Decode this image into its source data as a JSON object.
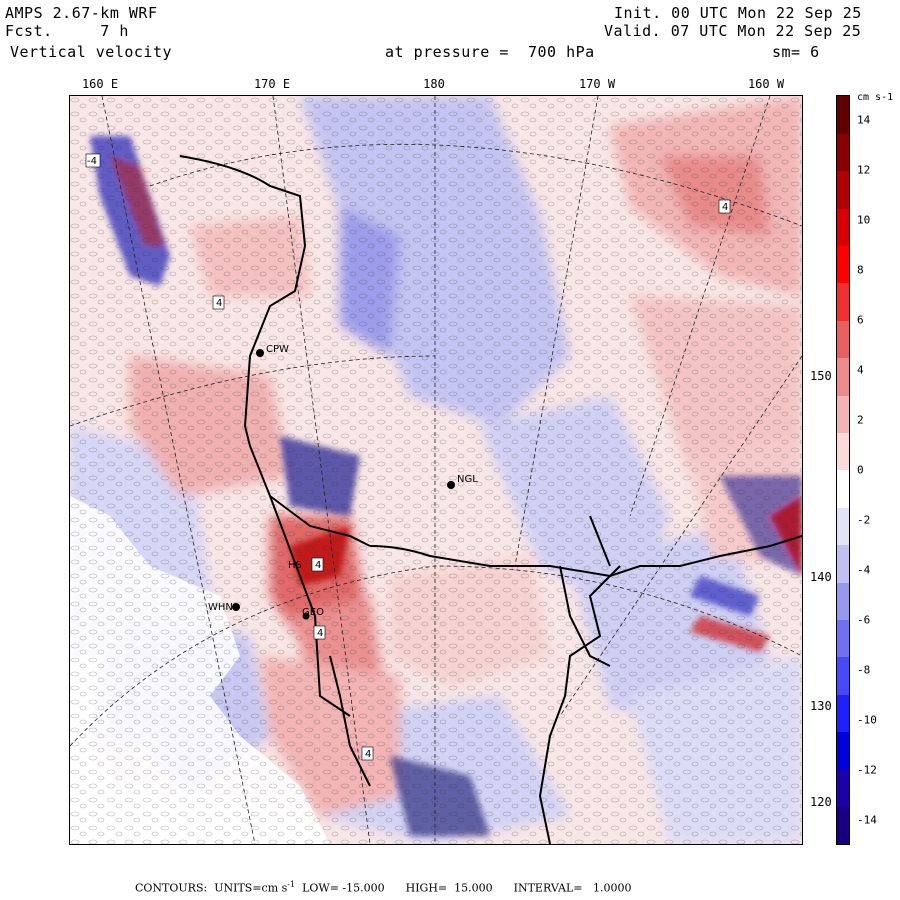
{
  "header": {
    "model": "AMPS 2.67-km WRF",
    "forecast": "Fcst.     7 h",
    "field": "Vertical velocity",
    "init": "Init. 00 UTC Mon 22 Sep 25",
    "valid": "Valid. 07 UTC Mon 22 Sep 25",
    "pressure": "at pressure =  700 hPa",
    "smoothing": "sm= 6"
  },
  "longitude_labels": [
    "160 E",
    "170 E",
    "180",
    "170 W",
    "160 W"
  ],
  "latitude_labels": [
    "150 W",
    "140 W",
    "130 W",
    "120 W"
  ],
  "stations": [
    "NGL",
    "CPW",
    "WHN",
    "GEO",
    "HS"
  ],
  "contour_labels": [
    "4",
    "-4"
  ],
  "colorbar": {
    "unit": "cm s-1",
    "ticks": [
      "14",
      "12",
      "10",
      "8",
      "6",
      "4",
      "2",
      "0",
      "-2",
      "-4",
      "-6",
      "-8",
      "-10",
      "-12",
      "-14"
    ],
    "colors": [
      "#1a0080",
      "#1e00a8",
      "#0000d8",
      "#2020ff",
      "#4848ff",
      "#7070f0",
      "#9898ee",
      "#c0c0f2",
      "#e2e2f8",
      "#ffffff",
      "#fbdada",
      "#f4b4b4",
      "#ee8a8a",
      "#e86060",
      "#f03030",
      "#ff0000",
      "#d80000",
      "#b00000",
      "#880000",
      "#600000"
    ]
  },
  "footer": {
    "contours": "CONTOURS:  UNITS=cm s",
    "unit_sup": "-1",
    "low": "LOW= -15.000",
    "high": "HIGH=  15.000",
    "interval": "INTERVAL=   1.0000"
  }
}
